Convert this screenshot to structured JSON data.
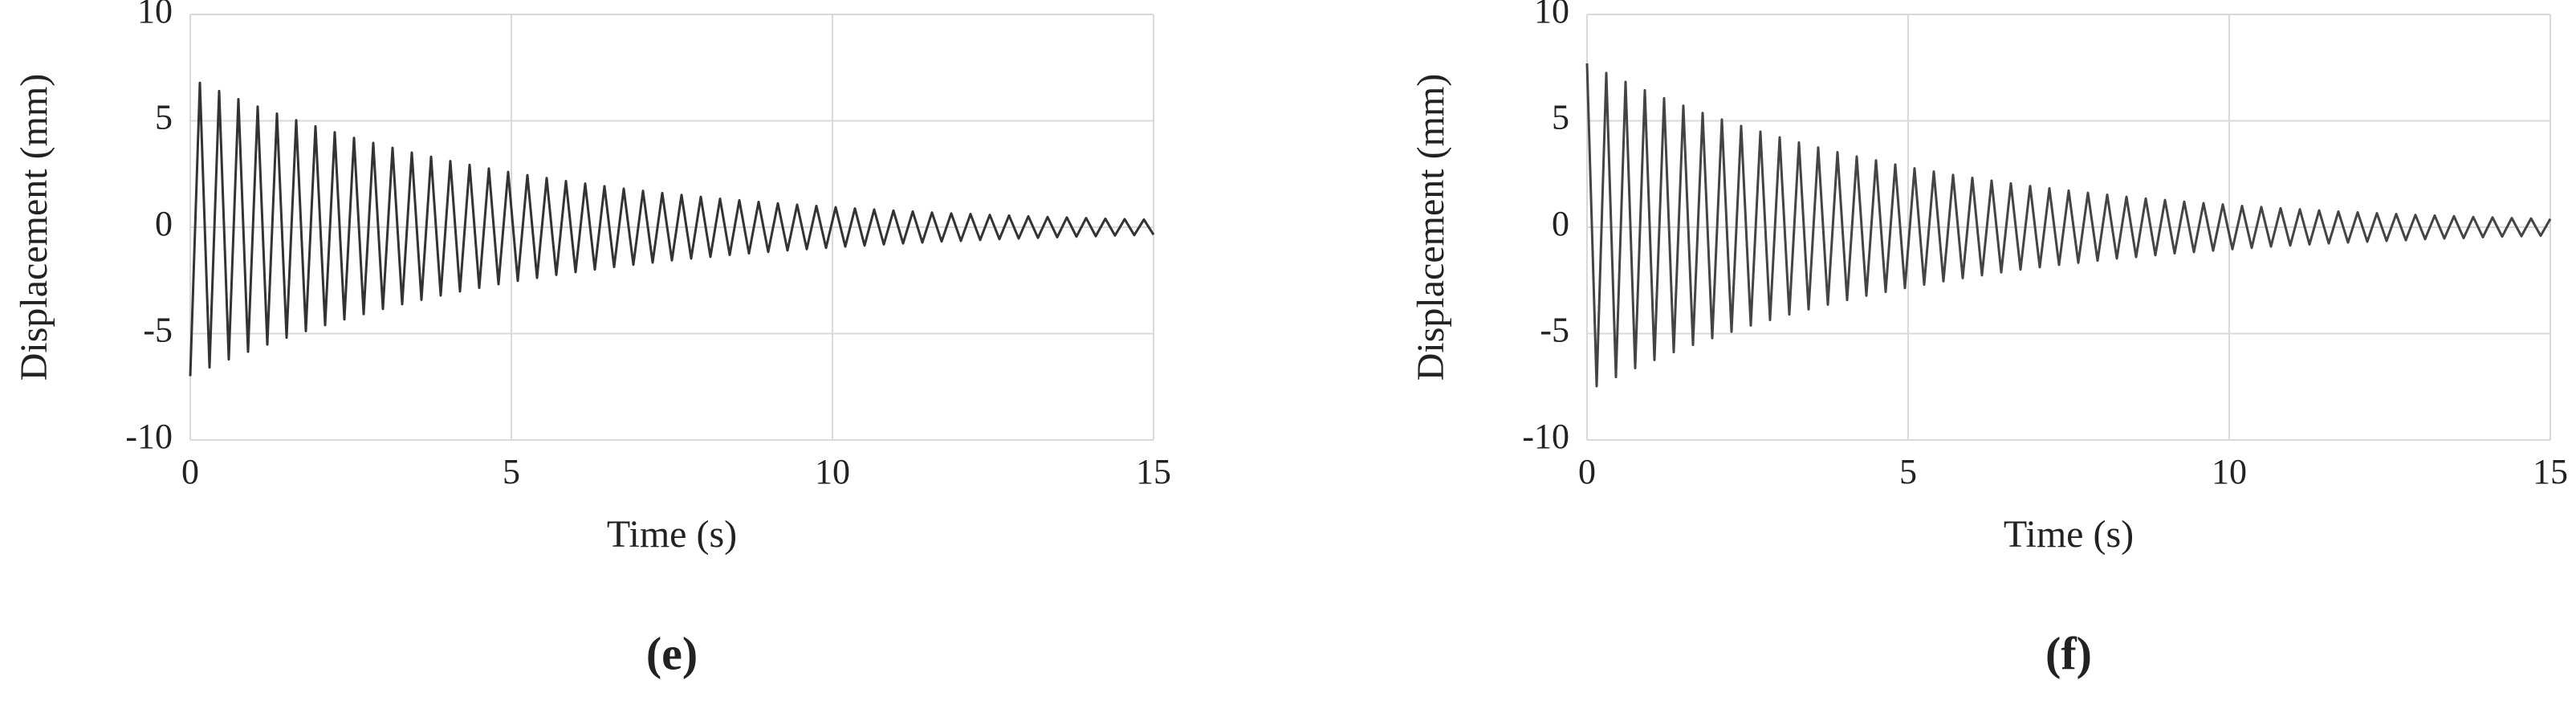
{
  "chart_data": [
    {
      "type": "line",
      "label": "(e)",
      "xlabel": "Time (s)",
      "ylabel": "Displacement (mm)",
      "xlim": [
        0,
        15
      ],
      "ylim": [
        -10,
        10
      ],
      "xticks": [
        0,
        5,
        10,
        15
      ],
      "yticks": [
        -10,
        -5,
        0,
        5,
        10
      ],
      "grid": true,
      "series": [
        {
          "color": "#333333",
          "x": [
            0,
            0.15,
            0.3,
            0.45,
            0.6,
            0.75,
            0.9,
            1.05,
            1.2,
            1.35,
            1.5,
            1.65,
            1.8,
            1.95,
            2.1,
            2.25,
            2.4,
            2.55,
            2.7,
            2.85,
            3,
            3.15,
            3.3,
            3.45,
            3.6,
            3.75,
            3.9,
            4.05,
            4.2,
            4.35,
            4.5,
            4.65,
            4.8,
            4.95,
            5.1,
            5.25,
            5.4,
            5.55,
            5.7,
            5.85,
            6,
            6.15,
            6.3,
            6.45,
            6.6,
            6.75,
            6.9,
            7.05,
            7.2,
            7.35,
            7.5,
            7.65,
            7.8,
            7.95,
            8.1,
            8.25,
            8.4,
            8.55,
            8.7,
            8.85,
            9,
            9.15,
            9.3,
            9.45,
            9.6,
            9.75,
            9.9,
            10.05,
            10.2,
            10.35,
            10.5,
            10.65,
            10.8,
            10.95,
            11.1,
            11.25,
            11.4,
            11.55,
            11.7,
            11.85,
            12,
            12.15,
            12.3,
            12.45,
            12.6,
            12.75,
            12.9,
            13.05,
            13.2,
            13.35,
            13.5,
            13.65,
            13.8,
            13.95,
            14.1,
            14.25,
            14.4,
            14.55,
            14.7,
            14.85,
            15
          ],
          "values": [
            -7.0,
            6.79,
            -6.59,
            6.4,
            -6.21,
            6.02,
            -5.85,
            5.67,
            -5.51,
            5.34,
            -5.19,
            5.03,
            -4.88,
            4.74,
            -4.6,
            4.46,
            -4.33,
            4.2,
            -4.08,
            3.96,
            -3.84,
            3.73,
            -3.62,
            3.51,
            -3.41,
            3.31,
            -3.21,
            3.11,
            -3.02,
            2.93,
            -2.85,
            2.76,
            -2.68,
            2.6,
            -2.52,
            2.45,
            -2.38,
            2.31,
            -2.24,
            2.17,
            -2.11,
            2.05,
            -1.99,
            1.93,
            -1.87,
            1.81,
            -1.76,
            1.71,
            -1.66,
            1.61,
            -1.56,
            1.52,
            -1.47,
            1.43,
            -1.39,
            1.34,
            -1.3,
            1.27,
            -1.23,
            1.19,
            -1.16,
            1.12,
            -1.09,
            1.06,
            -1.03,
            1.0,
            -0.97,
            0.94,
            -0.91,
            0.88,
            -0.86,
            0.83,
            -0.81,
            0.78,
            -0.76,
            0.74,
            -0.72,
            0.69,
            -0.67,
            0.65,
            -0.64,
            0.62,
            -0.6,
            0.58,
            -0.56,
            0.55,
            -0.53,
            0.51,
            -0.5,
            0.48,
            -0.47,
            0.46,
            -0.44,
            0.43,
            -0.42,
            0.4,
            -0.39,
            0.38,
            -0.37,
            0.36,
            -0.35
          ]
        }
      ]
    },
    {
      "type": "line",
      "label": "(f)",
      "xlabel": "Time (s)",
      "ylabel": "Displacement (mm)",
      "xlim": [
        0,
        15
      ],
      "ylim": [
        -10,
        10
      ],
      "xticks": [
        0,
        5,
        10,
        15
      ],
      "yticks": [
        -10,
        -5,
        0,
        5,
        10
      ],
      "grid": true,
      "series": [
        {
          "color": "#444444",
          "x": [
            0,
            0.15,
            0.3,
            0.45,
            0.6,
            0.75,
            0.9,
            1.05,
            1.2,
            1.35,
            1.5,
            1.65,
            1.8,
            1.95,
            2.1,
            2.25,
            2.4,
            2.55,
            2.7,
            2.85,
            3,
            3.15,
            3.3,
            3.45,
            3.6,
            3.75,
            3.9,
            4.05,
            4.2,
            4.35,
            4.5,
            4.65,
            4.8,
            4.95,
            5.1,
            5.25,
            5.4,
            5.55,
            5.7,
            5.85,
            6,
            6.15,
            6.3,
            6.45,
            6.6,
            6.75,
            6.9,
            7.05,
            7.2,
            7.35,
            7.5,
            7.65,
            7.8,
            7.95,
            8.1,
            8.25,
            8.4,
            8.55,
            8.7,
            8.85,
            9,
            9.15,
            9.3,
            9.45,
            9.6,
            9.75,
            9.9,
            10.05,
            10.2,
            10.35,
            10.5,
            10.65,
            10.8,
            10.95,
            11.1,
            11.25,
            11.4,
            11.55,
            11.7,
            11.85,
            12,
            12.15,
            12.3,
            12.45,
            12.6,
            12.75,
            12.9,
            13.05,
            13.2,
            13.35,
            13.5,
            13.65,
            13.8,
            13.95,
            14.1,
            14.25,
            14.4,
            14.55,
            14.7,
            14.85,
            15
          ],
          "values": [
            7.7,
            -7.47,
            7.25,
            -7.04,
            6.83,
            -6.62,
            6.44,
            -6.24,
            6.06,
            -5.87,
            5.71,
            -5.53,
            5.37,
            -5.21,
            5.06,
            -4.91,
            4.76,
            -4.62,
            4.49,
            -4.36,
            4.22,
            -4.1,
            3.98,
            -3.86,
            3.75,
            -3.64,
            3.53,
            -3.42,
            3.32,
            -3.22,
            3.14,
            -3.04,
            2.95,
            -2.86,
            2.77,
            -2.7,
            2.62,
            -2.54,
            2.46,
            -2.39,
            2.32,
            -2.26,
            2.19,
            -2.12,
            2.06,
            -1.99,
            1.94,
            -1.88,
            1.83,
            -1.77,
            1.72,
            -1.67,
            1.62,
            -1.57,
            1.53,
            -1.47,
            1.43,
            -1.4,
            1.35,
            -1.31,
            1.28,
            -1.23,
            1.2,
            -1.17,
            1.13,
            -1.1,
            1.07,
            -1.03,
            1.0,
            -0.97,
            0.95,
            -0.91,
            0.89,
            -0.86,
            0.84,
            -0.81,
            0.79,
            -0.76,
            0.74,
            -0.72,
            0.7,
            -0.68,
            0.66,
            -0.64,
            0.62,
            -0.61,
            0.58,
            -0.56,
            0.55,
            -0.53,
            0.52,
            -0.51,
            0.48,
            -0.47,
            0.46,
            -0.44,
            0.43,
            -0.42,
            0.41,
            -0.4,
            0.39
          ]
        }
      ]
    }
  ]
}
